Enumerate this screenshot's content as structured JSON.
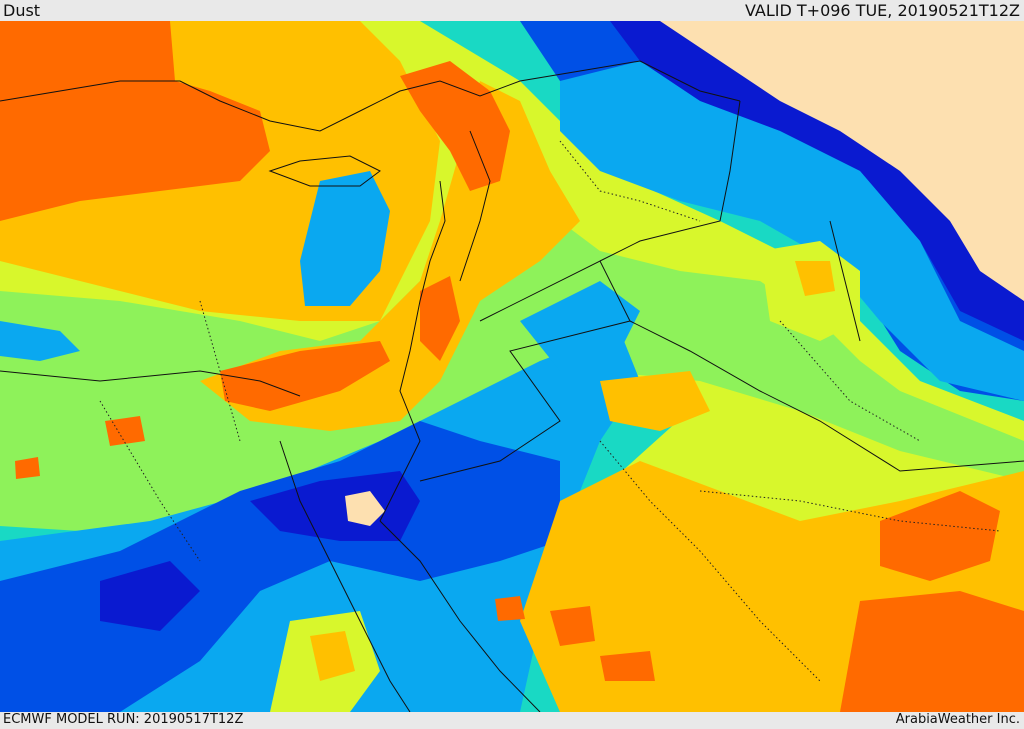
{
  "header": {
    "product_label": "Dust",
    "valid_time": "VALID T+096 TUE, 20190521T12Z"
  },
  "footer": {
    "model_run": "ECMWF MODEL RUN: 20190517T12Z",
    "credit": "ArabiaWeather Inc."
  },
  "legend_colors": {
    "very_high": "#ff6a00",
    "high": "#ffc000",
    "moderate_high": "#d8f72c",
    "moderate": "#8ef25a",
    "low_moderate": "#19d9c4",
    "low": "#0aa8f0",
    "very_low": "#0050e6",
    "minimal": "#0a1ad0",
    "land_no_data": "#fde0b0"
  }
}
